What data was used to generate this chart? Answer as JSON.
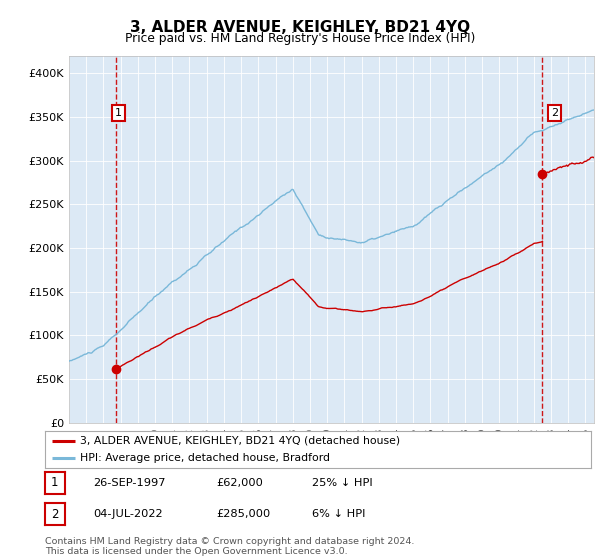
{
  "title": "3, ALDER AVENUE, KEIGHLEY, BD21 4YQ",
  "subtitle": "Price paid vs. HM Land Registry's House Price Index (HPI)",
  "legend_line1": "3, ALDER AVENUE, KEIGHLEY, BD21 4YQ (detached house)",
  "legend_line2": "HPI: Average price, detached house, Bradford",
  "footnote": "Contains HM Land Registry data © Crown copyright and database right 2024.\nThis data is licensed under the Open Government Licence v3.0.",
  "table_row1": [
    "1",
    "26-SEP-1997",
    "£62,000",
    "25% ↓ HPI"
  ],
  "table_row2": [
    "2",
    "04-JUL-2022",
    "£285,000",
    "6% ↓ HPI"
  ],
  "sale1_date": 1997.74,
  "sale1_price": 62000,
  "sale2_date": 2022.5,
  "sale2_price": 285000,
  "hpi_color": "#7ab8d9",
  "price_color": "#cc0000",
  "background_color": "#dce9f5",
  "ylim_max": 420000,
  "xlim_start": 1995.0,
  "xlim_end": 2025.5,
  "hpi_seed": 10,
  "red_seed1": 20,
  "red_seed2": 30
}
